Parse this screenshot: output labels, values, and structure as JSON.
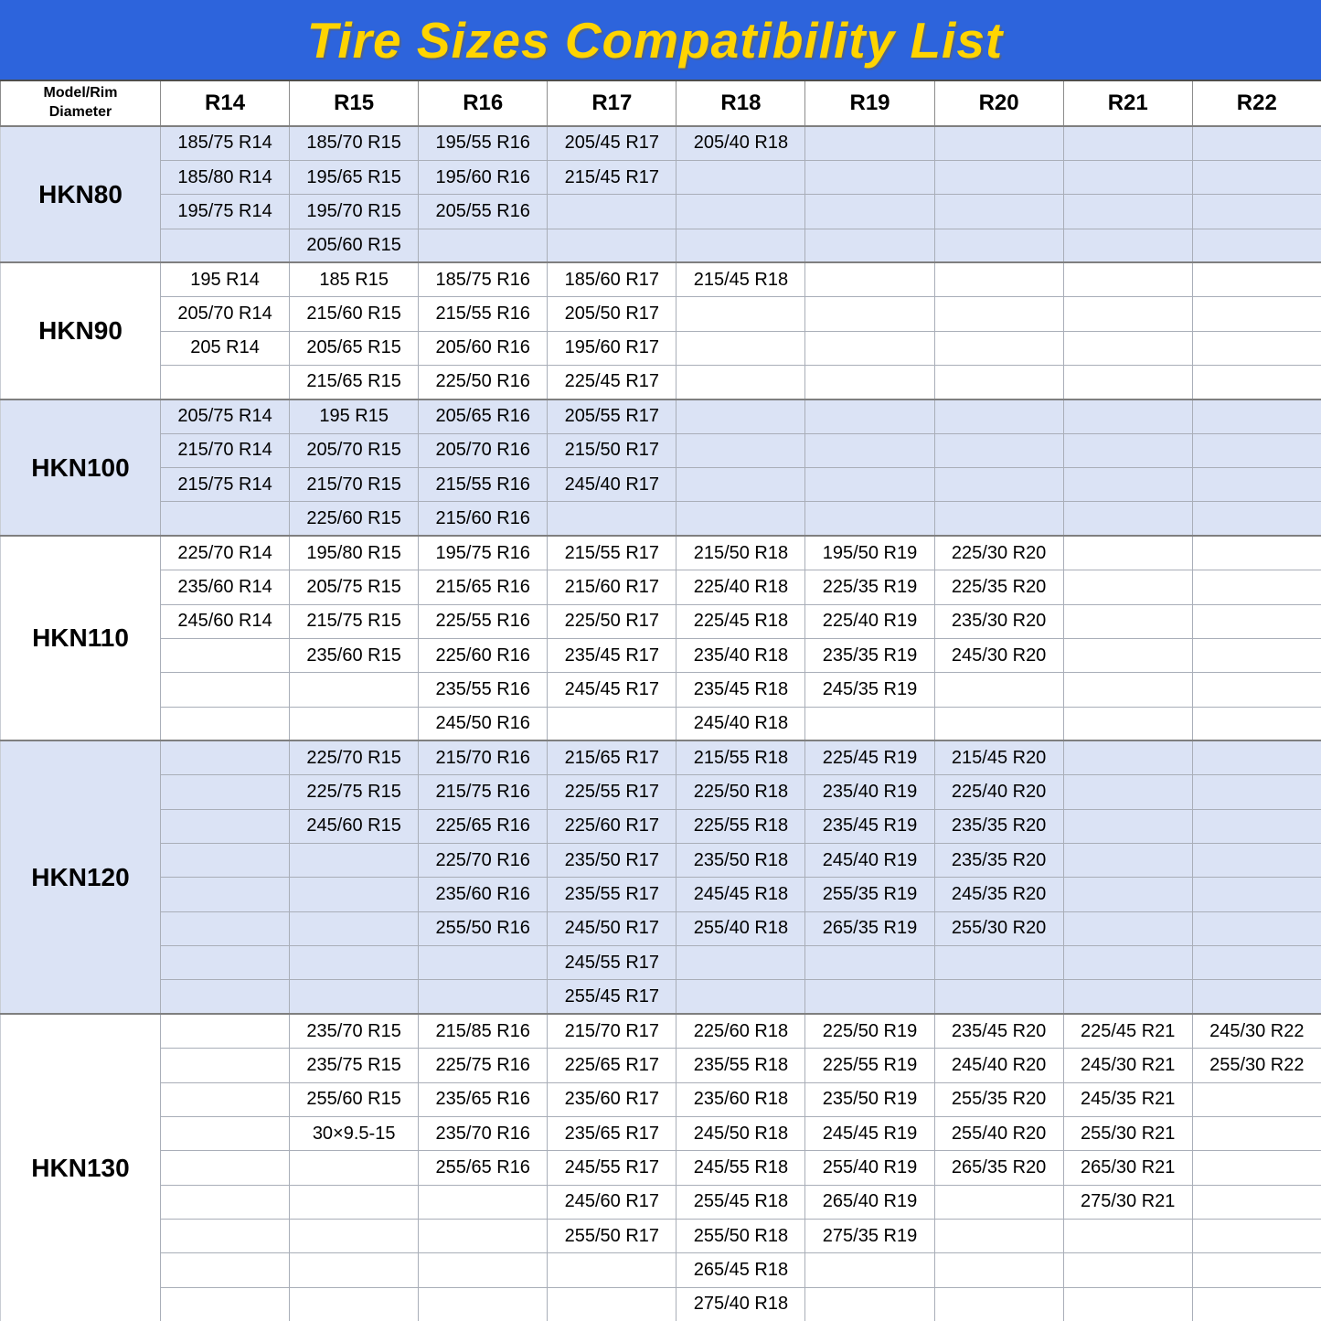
{
  "title": "Tire Sizes Compatibility List",
  "colors": {
    "banner_blue": "#2d64dc",
    "title_yellow": "#ffd400",
    "group_light_blue": "#dbe3f5",
    "group_white": "#ffffff",
    "cell_border_gray": "#a9aeb8",
    "group_separator_gray": "#7f7f7f"
  },
  "table": {
    "corner_header": "Model/Rim\nDiameter",
    "columns": [
      "R14",
      "R15",
      "R16",
      "R17",
      "R18",
      "R19",
      "R20",
      "R21",
      "R22"
    ],
    "groups": [
      {
        "model": "HKN80",
        "shade": "blue",
        "rows": [
          [
            "185/75 R14",
            "185/70 R15",
            "195/55 R16",
            "205/45 R17",
            "205/40 R18",
            "",
            "",
            "",
            ""
          ],
          [
            "185/80 R14",
            "195/65 R15",
            "195/60 R16",
            "215/45 R17",
            "",
            "",
            "",
            "",
            ""
          ],
          [
            "195/75 R14",
            "195/70 R15",
            "205/55 R16",
            "",
            "",
            "",
            "",
            "",
            ""
          ],
          [
            "",
            "205/60 R15",
            "",
            "",
            "",
            "",
            "",
            "",
            ""
          ]
        ]
      },
      {
        "model": "HKN90",
        "shade": "white",
        "rows": [
          [
            "195 R14",
            "185 R15",
            "185/75 R16",
            "185/60 R17",
            "215/45 R18",
            "",
            "",
            "",
            ""
          ],
          [
            "205/70 R14",
            "215/60 R15",
            "215/55 R16",
            "205/50 R17",
            "",
            "",
            "",
            "",
            ""
          ],
          [
            "205 R14",
            "205/65 R15",
            "205/60 R16",
            "195/60 R17",
            "",
            "",
            "",
            "",
            ""
          ],
          [
            "",
            "215/65 R15",
            "225/50 R16",
            "225/45 R17",
            "",
            "",
            "",
            "",
            ""
          ]
        ]
      },
      {
        "model": "HKN100",
        "shade": "blue",
        "rows": [
          [
            "205/75 R14",
            "195 R15",
            "205/65 R16",
            "205/55 R17",
            "",
            "",
            "",
            "",
            ""
          ],
          [
            "215/70 R14",
            "205/70 R15",
            "205/70 R16",
            "215/50 R17",
            "",
            "",
            "",
            "",
            ""
          ],
          [
            "215/75 R14",
            "215/70 R15",
            "215/55 R16",
            "245/40 R17",
            "",
            "",
            "",
            "",
            ""
          ],
          [
            "",
            "225/60 R15",
            "215/60 R16",
            "",
            "",
            "",
            "",
            "",
            ""
          ]
        ]
      },
      {
        "model": "HKN110",
        "shade": "white",
        "rows": [
          [
            "225/70 R14",
            "195/80 R15",
            "195/75 R16",
            "215/55 R17",
            "215/50 R18",
            "195/50 R19",
            "225/30 R20",
            "",
            ""
          ],
          [
            "235/60 R14",
            "205/75 R15",
            "215/65 R16",
            "215/60 R17",
            "225/40 R18",
            "225/35 R19",
            "225/35 R20",
            "",
            ""
          ],
          [
            "245/60 R14",
            "215/75 R15",
            "225/55 R16",
            "225/50 R17",
            "225/45 R18",
            "225/40 R19",
            "235/30 R20",
            "",
            ""
          ],
          [
            "",
            "235/60 R15",
            "225/60 R16",
            "235/45 R17",
            "235/40 R18",
            "235/35 R19",
            "245/30 R20",
            "",
            ""
          ],
          [
            "",
            "",
            "235/55 R16",
            "245/45 R17",
            "235/45 R18",
            "245/35 R19",
            "",
            "",
            ""
          ],
          [
            "",
            "",
            "245/50 R16",
            "",
            "245/40 R18",
            "",
            "",
            "",
            ""
          ]
        ]
      },
      {
        "model": "HKN120",
        "shade": "blue",
        "rows": [
          [
            "",
            "225/70 R15",
            "215/70 R16",
            "215/65 R17",
            "215/55 R18",
            "225/45 R19",
            "215/45 R20",
            "",
            ""
          ],
          [
            "",
            "225/75 R15",
            "215/75 R16",
            "225/55 R17",
            "225/50 R18",
            "235/40 R19",
            "225/40 R20",
            "",
            ""
          ],
          [
            "",
            "245/60 R15",
            "225/65 R16",
            "225/60 R17",
            "225/55 R18",
            "235/45 R19",
            "235/35 R20",
            "",
            ""
          ],
          [
            "",
            "",
            "225/70 R16",
            "235/50 R17",
            "235/50 R18",
            "245/40 R19",
            "235/35 R20",
            "",
            ""
          ],
          [
            "",
            "",
            "235/60 R16",
            "235/55 R17",
            "245/45 R18",
            "255/35 R19",
            "245/35 R20",
            "",
            ""
          ],
          [
            "",
            "",
            "255/50 R16",
            "245/50 R17",
            "255/40 R18",
            "265/35 R19",
            "255/30 R20",
            "",
            ""
          ],
          [
            "",
            "",
            "",
            "245/55 R17",
            "",
            "",
            "",
            "",
            ""
          ],
          [
            "",
            "",
            "",
            "255/45 R17",
            "",
            "",
            "",
            "",
            ""
          ]
        ]
      },
      {
        "model": "HKN130",
        "shade": "white",
        "rows": [
          [
            "",
            "235/70 R15",
            "215/85 R16",
            "215/70 R17",
            "225/60 R18",
            "225/50 R19",
            "235/45 R20",
            "225/45 R21",
            "245/30 R22"
          ],
          [
            "",
            "235/75 R15",
            "225/75 R16",
            "225/65 R17",
            "235/55 R18",
            "225/55 R19",
            "245/40 R20",
            "245/30 R21",
            "255/30 R22"
          ],
          [
            "",
            "255/60 R15",
            "235/65 R16",
            "235/60 R17",
            "235/60 R18",
            "235/50 R19",
            "255/35 R20",
            "245/35 R21",
            ""
          ],
          [
            "",
            "30×9.5-15",
            "235/70 R16",
            "235/65 R17",
            "245/50 R18",
            "245/45 R19",
            "255/40 R20",
            "255/30 R21",
            ""
          ],
          [
            "",
            "",
            "255/65 R16",
            "245/55 R17",
            "245/55 R18",
            "255/40 R19",
            "265/35 R20",
            "265/30 R21",
            ""
          ],
          [
            "",
            "",
            "",
            "245/60 R17",
            "255/45 R18",
            "265/40 R19",
            "",
            "275/30 R21",
            ""
          ],
          [
            "",
            "",
            "",
            "255/50 R17",
            "255/50 R18",
            "275/35 R19",
            "",
            "",
            ""
          ],
          [
            "",
            "",
            "",
            "",
            "265/45 R18",
            "",
            "",
            "",
            ""
          ],
          [
            "",
            "",
            "",
            "",
            "275/40 R18",
            "",
            "",
            "",
            ""
          ]
        ]
      }
    ]
  }
}
